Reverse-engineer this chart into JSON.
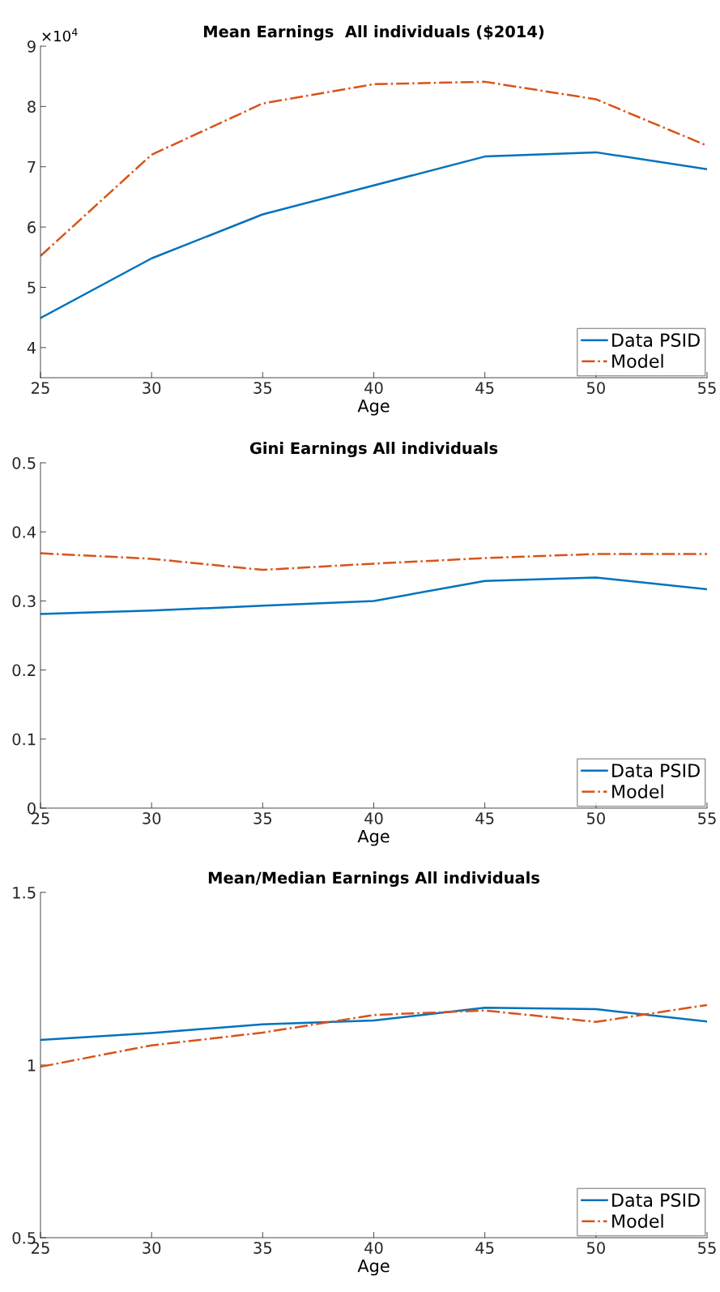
{
  "chart_data": [
    {
      "type": "line",
      "title": "Mean Earnings  All individuals ($2014)",
      "xlabel": "Age",
      "x": [
        25,
        30,
        35,
        40,
        45,
        50,
        55
      ],
      "xlim": [
        25,
        55
      ],
      "xticks": [
        25,
        30,
        35,
        40,
        45,
        50,
        55
      ],
      "ylim": [
        3.5,
        9
      ],
      "yticks": [
        4,
        5,
        6,
        7,
        8,
        9
      ],
      "annotations": [
        "×10$^{4}$"
      ],
      "legend": "bottom right",
      "grid": false,
      "series": [
        {
          "name": "Data PSID",
          "color": "#0072bd",
          "line_style": "solid",
          "values": [
            4.49,
            5.48,
            6.21,
            6.69,
            7.17,
            7.24,
            6.96
          ]
        },
        {
          "name": "Model",
          "color": "#d95319",
          "line_style": "dashdot",
          "values": [
            5.52,
            7.2,
            8.05,
            8.37,
            8.41,
            8.12,
            7.35
          ]
        }
      ]
    },
    {
      "type": "line",
      "title": "Gini Earnings All individuals",
      "xlabel": "Age",
      "x": [
        25,
        30,
        35,
        40,
        45,
        50,
        55
      ],
      "xlim": [
        25,
        55
      ],
      "xticks": [
        25,
        30,
        35,
        40,
        45,
        50,
        55
      ],
      "ylim": [
        0,
        0.5
      ],
      "yticks": [
        0,
        0.1,
        0.2,
        0.3,
        0.4,
        0.5
      ],
      "legend": "bottom right",
      "grid": false,
      "series": [
        {
          "name": "Data PSID",
          "color": "#0072bd",
          "line_style": "solid",
          "values": [
            0.281,
            0.286,
            0.293,
            0.3,
            0.329,
            0.334,
            0.317
          ]
        },
        {
          "name": "Model",
          "color": "#d95319",
          "line_style": "dashdot",
          "values": [
            0.369,
            0.361,
            0.345,
            0.354,
            0.362,
            0.368,
            0.368
          ]
        }
      ]
    },
    {
      "type": "line",
      "title": "Mean/Median Earnings All individuals",
      "xlabel": "Age",
      "x": [
        25,
        30,
        35,
        40,
        45,
        50,
        55
      ],
      "xlim": [
        25,
        55
      ],
      "xticks": [
        25,
        30,
        35,
        40,
        45,
        50,
        55
      ],
      "ylim": [
        0.5,
        1.5
      ],
      "yticks": [
        0.5,
        1,
        1.5
      ],
      "legend": "bottom right",
      "grid": false,
      "series": [
        {
          "name": "Data PSID",
          "color": "#0072bd",
          "line_style": "solid",
          "values": [
            1.073,
            1.093,
            1.118,
            1.129,
            1.166,
            1.162,
            1.126
          ]
        },
        {
          "name": "Model",
          "color": "#d95319",
          "line_style": "dashdot",
          "values": [
            0.995,
            1.057,
            1.094,
            1.145,
            1.158,
            1.125,
            1.174
          ]
        }
      ]
    }
  ]
}
